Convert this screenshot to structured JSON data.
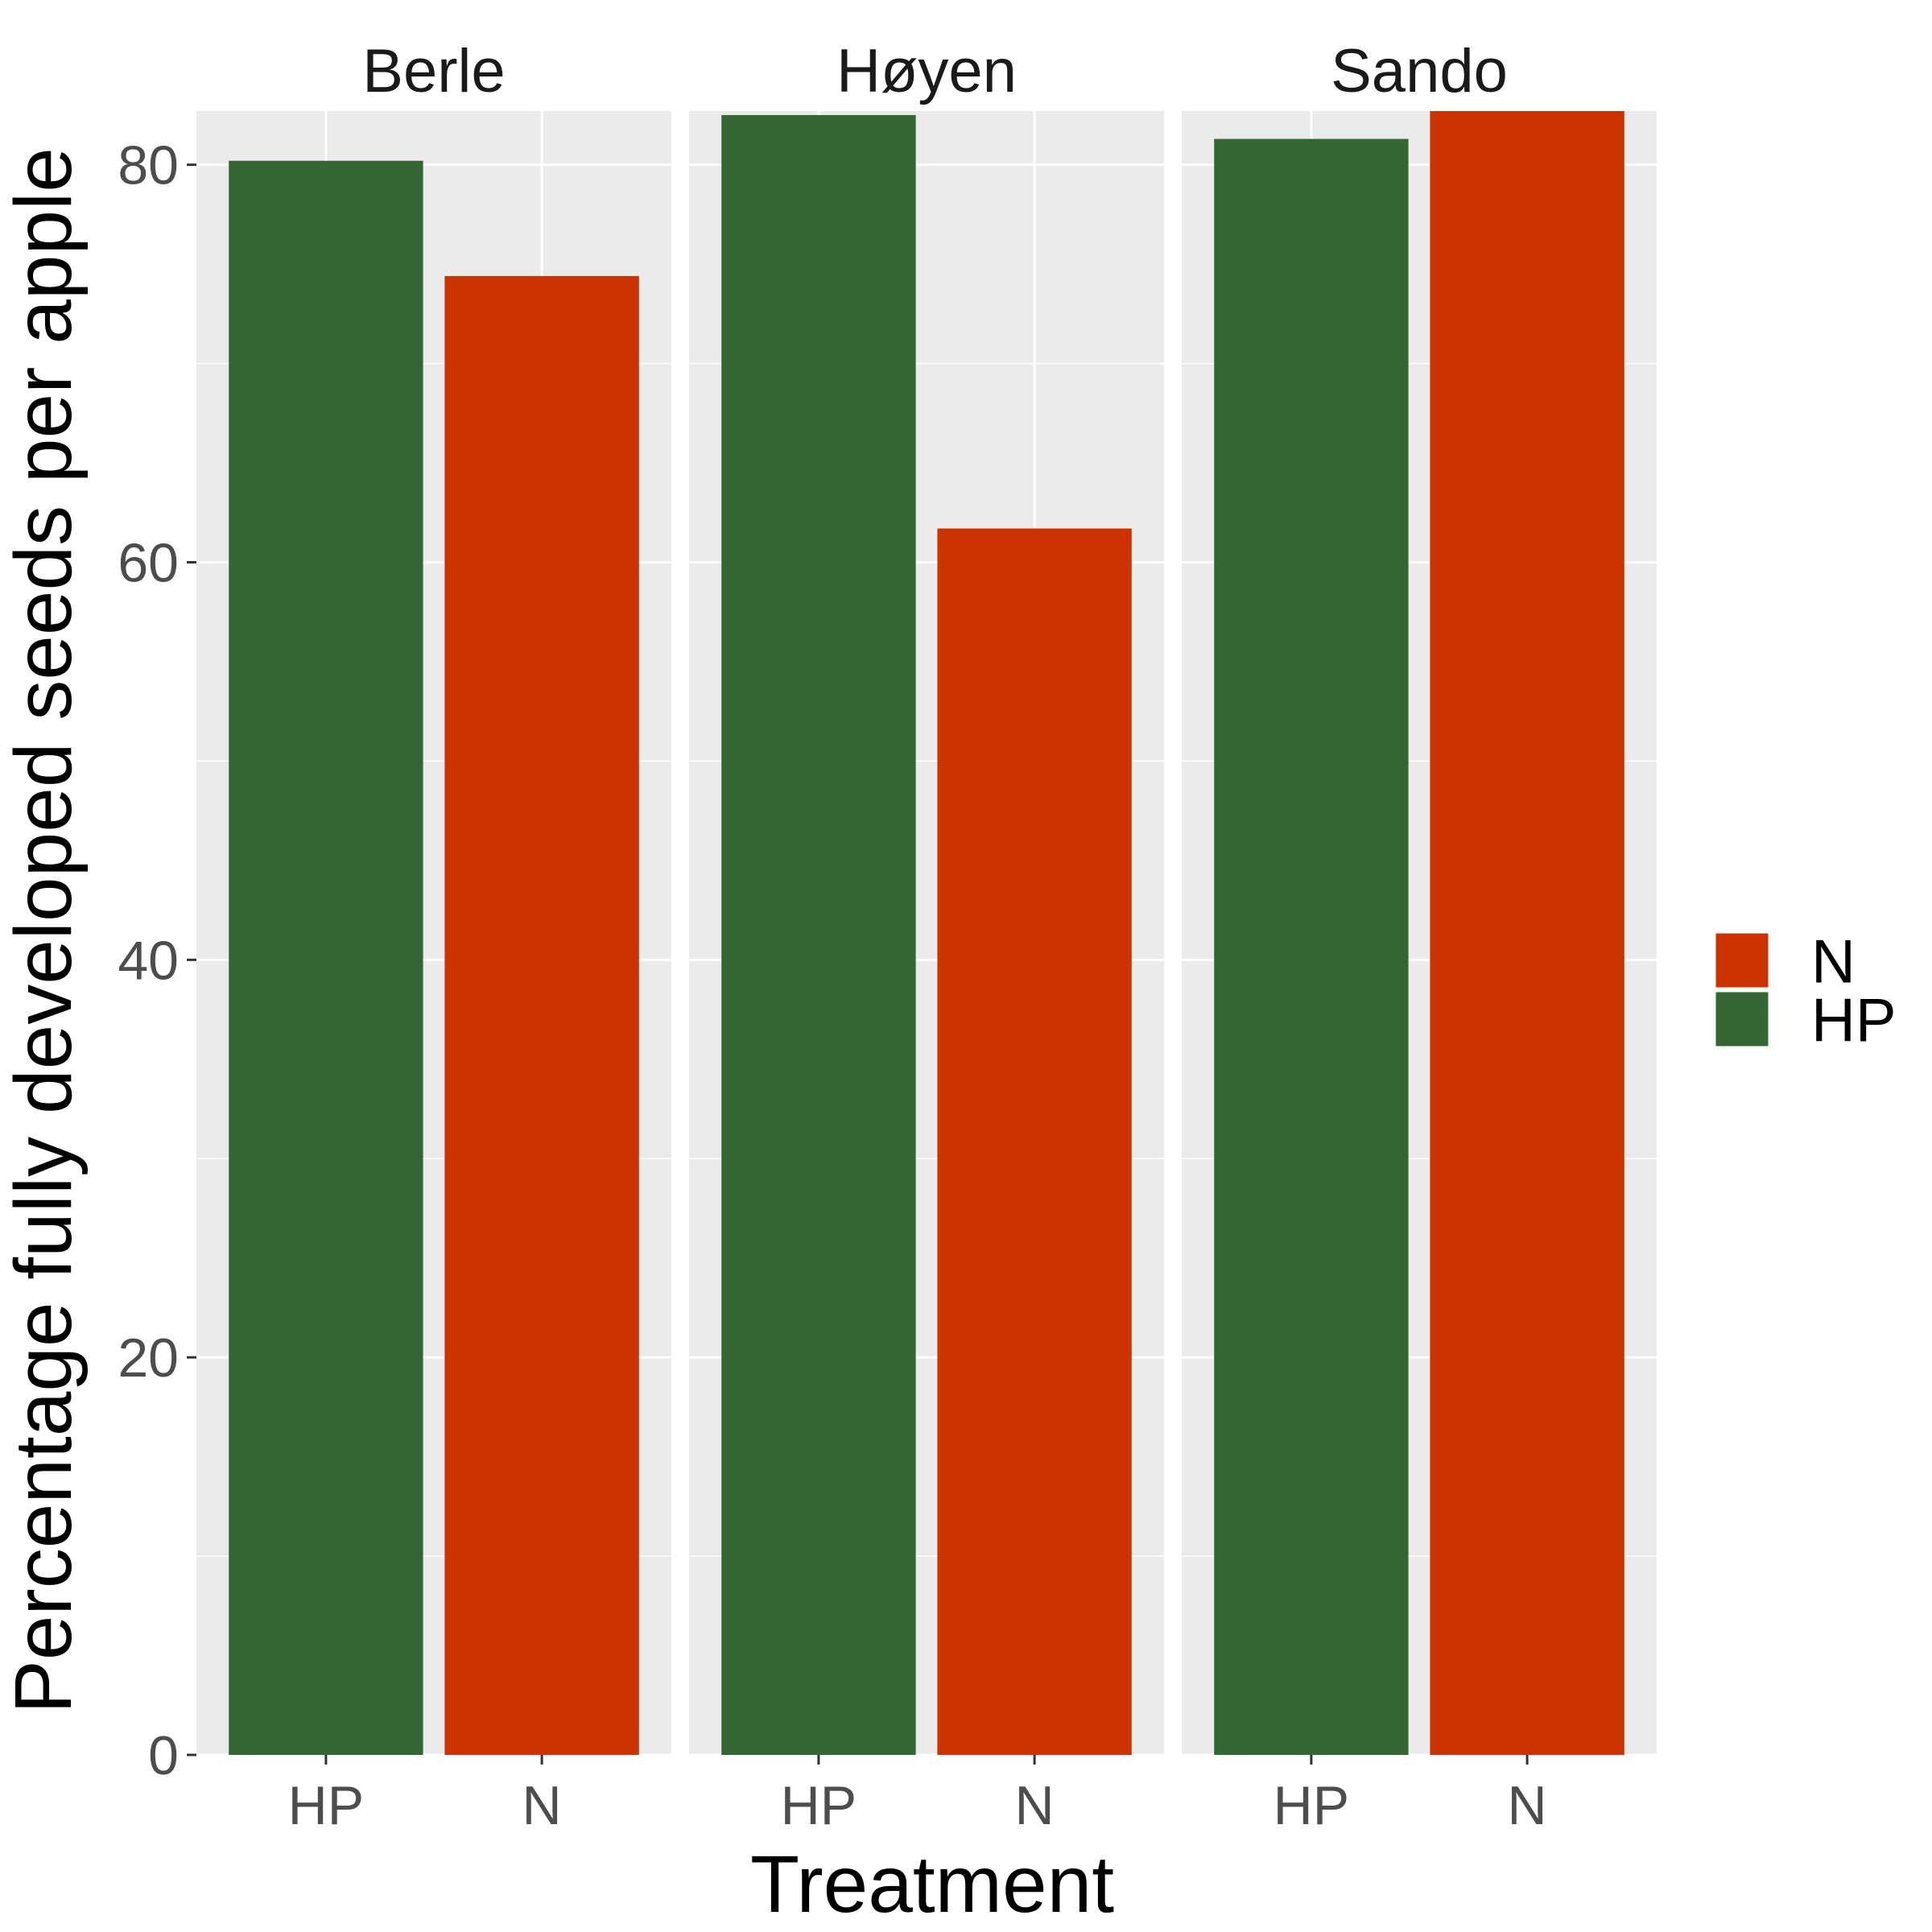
{
  "chart_data": {
    "type": "bar",
    "facets": [
      "Berle",
      "Høyen",
      "Sando"
    ],
    "categories": [
      "HP",
      "N"
    ],
    "series": [
      {
        "facet": "Berle",
        "values": [
          80.2,
          74.4
        ]
      },
      {
        "facet": "Høyen",
        "values": [
          82.5,
          61.7
        ]
      },
      {
        "facet": "Sando",
        "values": [
          81.3,
          82.7
        ]
      }
    ],
    "xlabel": "Treatment",
    "ylabel": "Percentage fully developed seeds per apple",
    "ylim": [
      0,
      82.7
    ],
    "yticks": [
      0,
      20,
      40,
      60,
      80
    ],
    "grid": true,
    "legend": {
      "position": "right",
      "entries": [
        {
          "label": "N",
          "color": "#cc3300"
        },
        {
          "label": "HP",
          "color": "#336633"
        }
      ]
    },
    "colors": {
      "HP": "#336633",
      "N": "#cc3300",
      "panel": "#ebebeb",
      "grid": "#ffffff"
    }
  }
}
